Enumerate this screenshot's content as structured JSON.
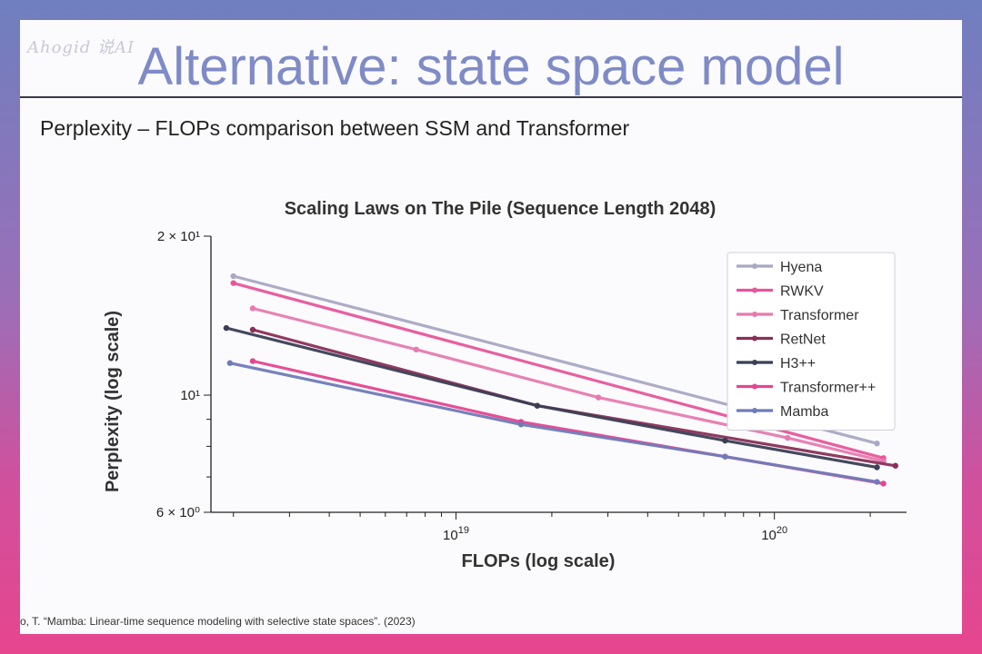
{
  "slide": {
    "watermark": "Ahogid 说AI",
    "title": "Alternative: state space model",
    "subtitle": "Perplexity – FLOPs comparison between SSM and Transformer",
    "citation": "o, T. “Mamba: Linear-time sequence modeling with selective state spaces”. (2023)"
  },
  "chart_data": {
    "type": "line",
    "title": "Scaling Laws on The Pile (Sequence Length 2048)",
    "xlabel": "FLOPs (log scale)",
    "ylabel": "Perplexity (log scale)",
    "xscale": "log",
    "yscale": "log",
    "xlim": [
      1.7e+18,
      2.6e+20
    ],
    "ylim": [
      6,
      20
    ],
    "xticks": [
      {
        "value": 1e+19,
        "label_base": "10",
        "label_exp": "19"
      },
      {
        "value": 1e+20,
        "label_base": "10",
        "label_exp": "20"
      }
    ],
    "yticks": [
      {
        "value": 20,
        "label": "2 × 10¹"
      },
      {
        "value": 10,
        "label": "10¹"
      },
      {
        "value": 6,
        "label": "6 × 10⁰"
      }
    ],
    "legend_position": "top-right",
    "grid": false,
    "series": [
      {
        "name": "Hyena",
        "color": "#a8a8c4",
        "x": [
          2e+18,
          2.1e+20
        ],
        "y": [
          16.8,
          8.1
        ]
      },
      {
        "name": "RWKV",
        "color": "#e8559a",
        "x": [
          2e+18,
          2.2e+20
        ],
        "y": [
          16.3,
          7.6
        ]
      },
      {
        "name": "Transformer",
        "color": "#e77ab0",
        "x": [
          2.3e+18,
          7.5e+18,
          2.8e+19,
          1.1e+20,
          2.2e+20
        ],
        "y": [
          14.6,
          12.2,
          9.9,
          8.3,
          7.5
        ]
      },
      {
        "name": "RetNet",
        "color": "#8a2f58",
        "x": [
          2.3e+18,
          1.8e+19,
          2.4e+20
        ],
        "y": [
          13.3,
          9.55,
          7.35
        ]
      },
      {
        "name": "H3++",
        "color": "#3a3f55",
        "x": [
          1.9e+18,
          1.8e+19,
          7e+19,
          2.1e+20
        ],
        "y": [
          13.4,
          9.55,
          8.2,
          7.3
        ]
      },
      {
        "name": "Transformer++",
        "color": "#e6458f",
        "x": [
          2.3e+18,
          1.6e+19,
          7e+19,
          2.2e+20
        ],
        "y": [
          11.6,
          8.9,
          7.65,
          6.8
        ]
      },
      {
        "name": "Mamba",
        "color": "#6f7bb8",
        "x": [
          1.95e+18,
          1.6e+19,
          7e+19,
          2.1e+20
        ],
        "y": [
          11.5,
          8.8,
          7.65,
          6.85
        ]
      }
    ]
  }
}
